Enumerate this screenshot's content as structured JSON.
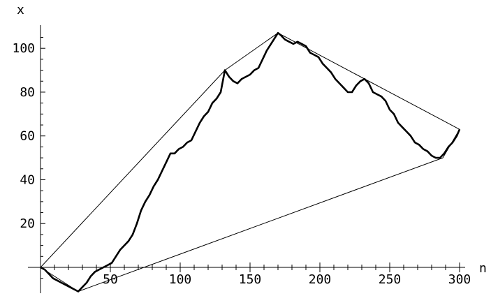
{
  "chart_data": {
    "type": "line",
    "title": "",
    "xlabel": "n",
    "ylabel": "x",
    "xlim": [
      -2,
      304
    ],
    "ylim": [
      -11,
      110
    ],
    "x_ticks": [
      50,
      100,
      150,
      200,
      250,
      300
    ],
    "y_ticks": [
      20,
      40,
      60,
      80,
      100
    ],
    "x_tick_labels": [
      "50",
      "100",
      "150",
      "200",
      "250",
      "300"
    ],
    "y_tick_labels": [
      "20",
      "40",
      "60",
      "80",
      "100"
    ],
    "grid": false,
    "legend": "none",
    "series": [
      {
        "style": "thick",
        "x": [
          0,
          3,
          6,
          9,
          12,
          15,
          18,
          21,
          24,
          27,
          30,
          33,
          36,
          39,
          42,
          45,
          48,
          51,
          54,
          57,
          60,
          63,
          66,
          69,
          72,
          75,
          78,
          81,
          84,
          87,
          90,
          93,
          96,
          99,
          102,
          105,
          108,
          111,
          114,
          117,
          120,
          123,
          126,
          129,
          132,
          135,
          138,
          141,
          144,
          147,
          150,
          153,
          156,
          159,
          162,
          165,
          168,
          170,
          172,
          175,
          178,
          181,
          184,
          187,
          190,
          193,
          196,
          199,
          202,
          205,
          208,
          211,
          214,
          217,
          220,
          223,
          226,
          229,
          232,
          235,
          238,
          241,
          244,
          247,
          250,
          253,
          256,
          259,
          262,
          265,
          268,
          271,
          274,
          277,
          280,
          283,
          286,
          289,
          292,
          295,
          298,
          300
        ],
        "y": [
          0,
          -1,
          -3,
          -5,
          -6,
          -7,
          -8,
          -9,
          -10,
          -11,
          -9,
          -7,
          -4,
          -2,
          -1,
          0,
          1,
          2,
          5,
          8,
          10,
          12,
          15,
          20,
          26,
          30,
          33,
          37,
          40,
          44,
          48,
          52,
          52,
          54,
          55,
          57,
          58,
          62,
          66,
          69,
          71,
          75,
          77,
          80,
          90,
          87,
          85,
          84,
          86,
          87,
          88,
          90,
          91,
          95,
          99,
          102,
          105,
          107,
          106,
          104,
          103,
          102,
          103,
          102,
          101,
          98,
          97,
          96,
          93,
          91,
          89,
          86,
          84,
          82,
          80,
          80,
          83,
          85,
          86,
          84,
          80,
          79,
          78,
          76,
          72,
          70,
          66,
          64,
          62,
          60,
          57,
          56,
          54,
          53,
          51,
          50,
          50,
          52,
          55,
          57,
          60,
          63
        ]
      },
      {
        "style": "thin",
        "name": "",
        "x": [
          0,
          132,
          170,
          300,
          288,
          27,
          0
        ],
        "y": [
          0,
          90,
          107,
          63,
          50,
          -11,
          0
        ]
      }
    ]
  }
}
